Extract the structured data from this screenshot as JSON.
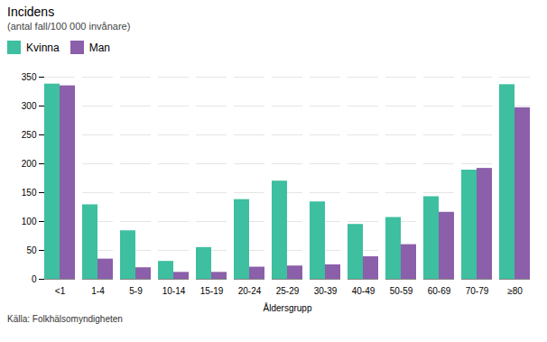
{
  "chart_data": {
    "type": "bar",
    "title": "Incidens",
    "subtitle": "(antal fall/100 000 invånare)",
    "xlabel": "Åldersgrupp",
    "source": "Källa: Folkhälsomyndigheten",
    "categories": [
      "<1",
      "1-4",
      "5-9",
      "10-14",
      "15-19",
      "20-24",
      "25-29",
      "30-39",
      "40-49",
      "50-59",
      "60-69",
      "70-79",
      "≥80"
    ],
    "series": [
      {
        "name": "Kvinna",
        "color": "#3dbfa0",
        "values": [
          338,
          129,
          84,
          31,
          55,
          138,
          170,
          134,
          95,
          107,
          143,
          189,
          337
        ]
      },
      {
        "name": "Man",
        "color": "#8b5faa",
        "values": [
          335,
          35,
          20,
          12,
          12,
          21,
          23,
          25,
          39,
          60,
          116,
          192,
          297
        ]
      }
    ],
    "ylim": [
      0,
      350
    ],
    "yticks": [
      0,
      50,
      100,
      150,
      200,
      250,
      300,
      350
    ],
    "grid": true,
    "legend": "top"
  }
}
